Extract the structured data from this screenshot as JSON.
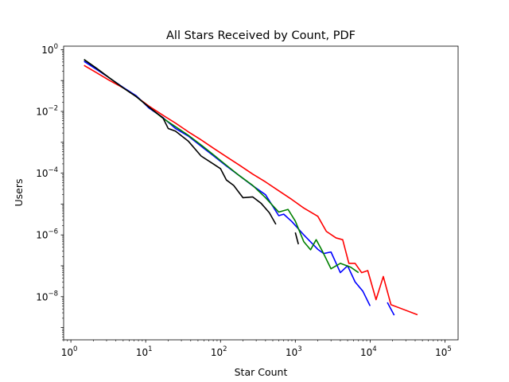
{
  "chart_data": {
    "type": "line",
    "title": "All Stars Received by Count, PDF",
    "xlabel": "Star Count",
    "ylabel": "Users",
    "xscale": "log",
    "yscale": "log",
    "xlim": [
      0.8,
      150000
    ],
    "ylim": [
      4e-10,
      1.3
    ],
    "xticks": [
      {
        "value": 1,
        "base": "10",
        "exp": "0"
      },
      {
        "value": 10,
        "base": "10",
        "exp": "1"
      },
      {
        "value": 100,
        "base": "10",
        "exp": "2"
      },
      {
        "value": 1000,
        "base": "10",
        "exp": "3"
      },
      {
        "value": 10000,
        "base": "10",
        "exp": "4"
      },
      {
        "value": 100000,
        "base": "10",
        "exp": "5"
      }
    ],
    "yticks": [
      {
        "value": 1e-08,
        "base": "10",
        "exp": "−8"
      },
      {
        "value": 1e-06,
        "base": "10",
        "exp": "−6"
      },
      {
        "value": 0.0001,
        "base": "10",
        "exp": "−4"
      },
      {
        "value": 0.01,
        "base": "10",
        "exp": "−2"
      },
      {
        "value": 1,
        "base": "10",
        "exp": "0"
      }
    ],
    "grid": false,
    "legend": "none",
    "series": [
      {
        "color": "#ff0000",
        "points": [
          [
            1.5,
            0.31
          ],
          [
            2.2,
            0.18
          ],
          [
            3.3,
            0.1
          ],
          [
            5,
            0.058
          ],
          [
            7.5,
            0.03
          ],
          [
            11,
            0.015
          ],
          [
            17,
            0.0075
          ],
          [
            25,
            0.0042
          ],
          [
            37,
            0.0022
          ],
          [
            55,
            0.0012
          ],
          [
            80,
            0.00065
          ],
          [
            120,
            0.00034
          ],
          [
            180,
            0.00018
          ],
          [
            270,
            9.3e-05
          ],
          [
            400,
            5.2e-05
          ],
          [
            600,
            2.7e-05
          ],
          [
            900,
            1.4e-05
          ],
          [
            1300,
            7.4e-06
          ],
          [
            2000,
            4e-06
          ],
          [
            2600,
            1.3e-06
          ],
          [
            3500,
            8e-07
          ],
          [
            4300,
            7e-07
          ],
          [
            5200,
            1.2e-07
          ],
          [
            6300,
            1.2e-07
          ],
          [
            7700,
            6e-08
          ],
          [
            9300,
            7e-08
          ],
          [
            12000,
            8e-09
          ],
          [
            15000,
            4.5e-08
          ],
          [
            19000,
            5.5e-09
          ],
          [
            43000,
            2.6e-09
          ]
        ]
      },
      {
        "color": "#0000ff",
        "points": [
          [
            1.5,
            0.42
          ],
          [
            2.2,
            0.23
          ],
          [
            3.3,
            0.12
          ],
          [
            5,
            0.06
          ],
          [
            7.5,
            0.032
          ],
          [
            11,
            0.013
          ],
          [
            17,
            0.0063
          ],
          [
            25,
            0.0028
          ],
          [
            37,
            0.0016
          ],
          [
            55,
            0.00075
          ],
          [
            80,
            0.00037
          ],
          [
            120,
            0.00017
          ],
          [
            180,
            8.2e-05
          ],
          [
            270,
            3.9e-05
          ],
          [
            400,
            2e-05
          ],
          [
            600,
            4.2e-06
          ],
          [
            700,
            4.7e-06
          ],
          [
            900,
            2.7e-06
          ],
          [
            1300,
            1e-06
          ],
          [
            2000,
            3.4e-07
          ],
          [
            2400,
            2.5e-07
          ],
          [
            3000,
            2.8e-07
          ],
          [
            4000,
            6e-08
          ],
          [
            5000,
            1e-07
          ],
          [
            6300,
            3e-08
          ],
          [
            8000,
            1.5e-08
          ],
          [
            10000,
            5e-09
          ]
        ]
      },
      {
        "color": "#0000ff",
        "points": [
          [
            17000,
            6.5e-09
          ],
          [
            21000,
            2.5e-09
          ]
        ]
      },
      {
        "color": "#008000",
        "points": [
          [
            1.5,
            0.48
          ],
          [
            2.2,
            0.25
          ],
          [
            3.3,
            0.12
          ],
          [
            5,
            0.058
          ],
          [
            7.5,
            0.03
          ],
          [
            11,
            0.014
          ],
          [
            17,
            0.006
          ],
          [
            25,
            0.0032
          ],
          [
            37,
            0.0017
          ],
          [
            55,
            0.00082
          ],
          [
            80,
            0.0004
          ],
          [
            120,
            0.00018
          ],
          [
            180,
            8.2e-05
          ],
          [
            270,
            4e-05
          ],
          [
            400,
            1.6e-05
          ],
          [
            600,
            5.5e-06
          ],
          [
            800,
            6.7e-06
          ],
          [
            1000,
            2.8e-06
          ],
          [
            1300,
            6e-07
          ],
          [
            1600,
            3.3e-07
          ],
          [
            1900,
            7e-07
          ],
          [
            2300,
            3e-07
          ],
          [
            3000,
            8e-08
          ],
          [
            4000,
            1.2e-07
          ],
          [
            5500,
            9e-08
          ],
          [
            7000,
            6e-08
          ]
        ]
      },
      {
        "color": "#000000",
        "points": [
          [
            1.5,
            0.48
          ],
          [
            2.2,
            0.25
          ],
          [
            3.3,
            0.12
          ],
          [
            5,
            0.058
          ],
          [
            7.5,
            0.03
          ],
          [
            11,
            0.014
          ],
          [
            17,
            0.0062
          ],
          [
            20,
            0.0028
          ],
          [
            25,
            0.0023
          ],
          [
            37,
            0.0011
          ],
          [
            55,
            0.00036
          ],
          [
            80,
            0.0002
          ],
          [
            100,
            0.00014
          ],
          [
            120,
            6e-05
          ],
          [
            150,
            4e-05
          ],
          [
            200,
            1.6e-05
          ],
          [
            270,
            1.7e-05
          ],
          [
            350,
            1.05e-05
          ],
          [
            450,
            5.2e-06
          ],
          [
            550,
            2.2e-06
          ]
        ]
      },
      {
        "color": "#000000",
        "points": [
          [
            1000,
            1.2e-06
          ],
          [
            1100,
            5e-07
          ]
        ]
      }
    ]
  }
}
